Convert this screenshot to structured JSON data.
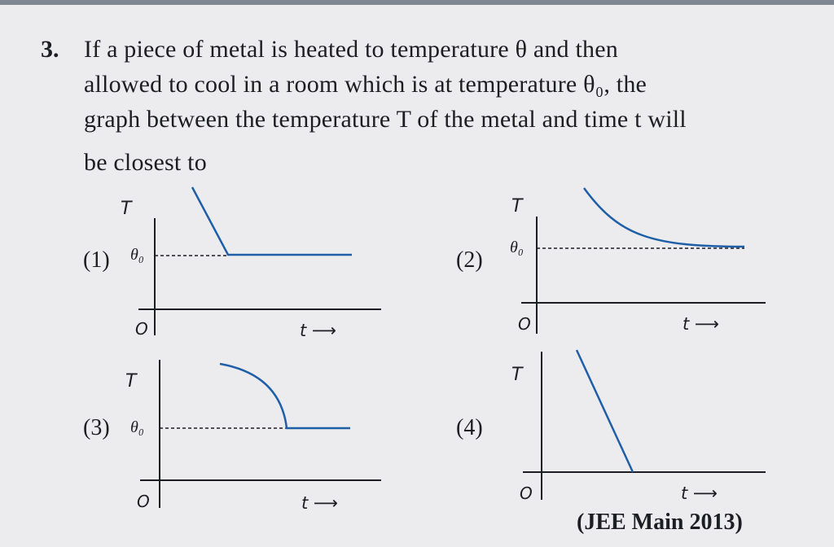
{
  "question": {
    "number": "3.",
    "lines": [
      "If a piece of metal is heated to temperature θ and then",
      "allowed to cool in a room which is at temperature θ₀, the",
      "graph between the temperature T of the metal and time t will",
      "be closest to"
    ]
  },
  "options": [
    {
      "label": "(1)",
      "y_axis_label": "T",
      "theta0_label": "θ₀",
      "origin_label": "O",
      "t_label": "t ⟶",
      "curve": "linear decrease then constant at θ₀"
    },
    {
      "label": "(2)",
      "y_axis_label": "T",
      "theta0_label": "θ₀",
      "origin_label": "O",
      "t_label": "t ⟶",
      "curve": "exponential decay toward θ₀"
    },
    {
      "label": "(3)",
      "y_axis_label": "T",
      "theta0_label": "θ₀",
      "origin_label": "O",
      "t_label": "t ⟶",
      "curve": "concave-down decrease then constant at θ₀"
    },
    {
      "label": "(4)",
      "y_axis_label": "T",
      "origin_label": "O",
      "t_label": "t ⟶",
      "curve": "linear decrease to zero"
    }
  ],
  "source": "(JEE Main 2013)",
  "colors": {
    "curve": "#1f5fa8",
    "axes": "#1d1d24",
    "background": "#ecebee"
  }
}
